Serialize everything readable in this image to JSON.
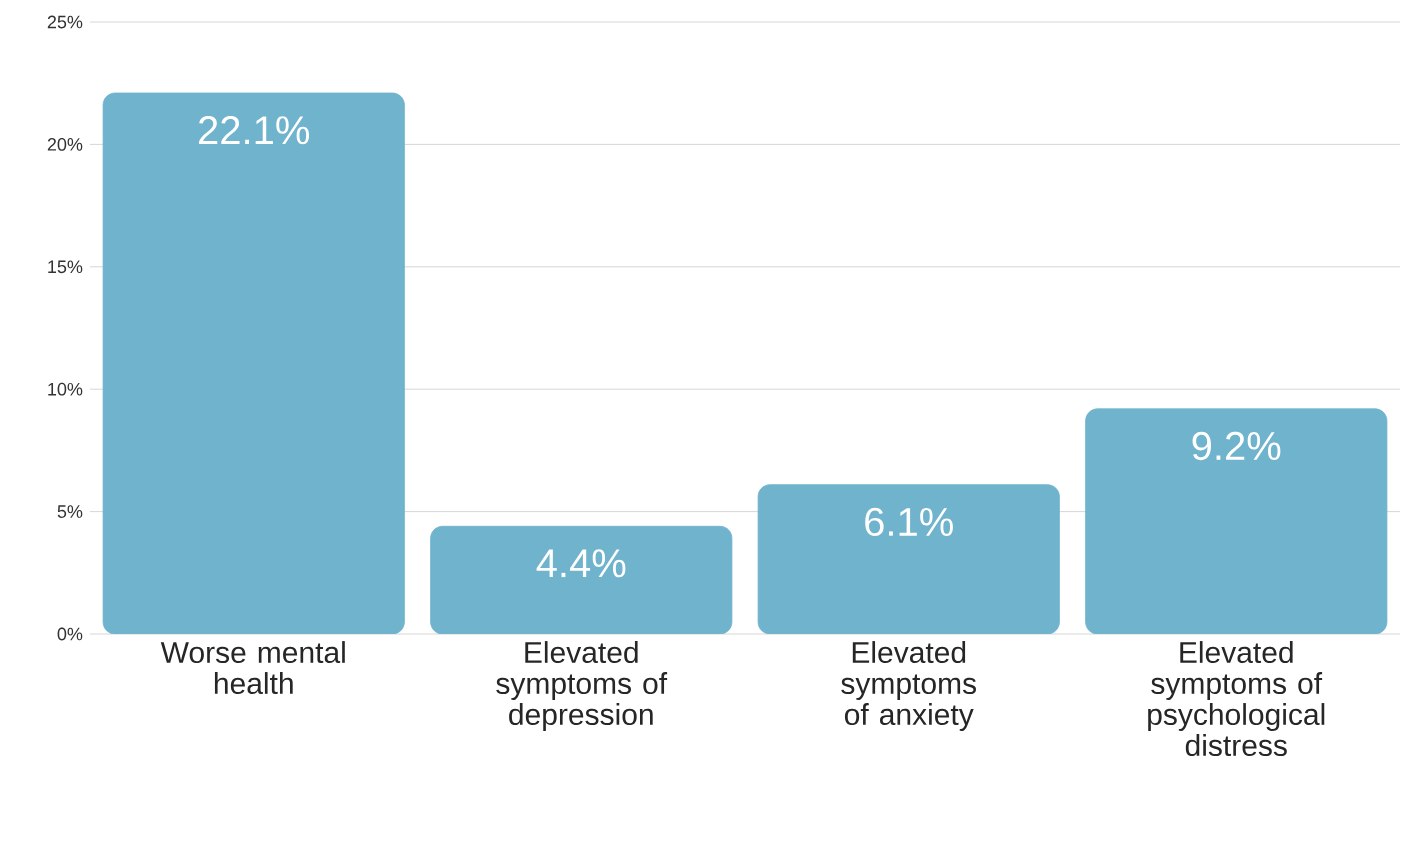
{
  "chart_data": {
    "type": "bar",
    "categories": [
      "Worse mental health",
      "Elevated symptoms of depression",
      "Elevated symptoms of anxiety",
      "Elevated symptoms of psychological distress"
    ],
    "values": [
      22.1,
      4.4,
      6.1,
      9.2
    ],
    "value_labels": [
      "22.1%",
      "4.4%",
      "6.1%",
      "9.2%"
    ],
    "color": "#6fb3cd",
    "ylim": [
      0,
      25
    ],
    "yticks": [
      {
        "value": 0,
        "label": "0%"
      },
      {
        "value": 5,
        "label": "5%"
      },
      {
        "value": 10,
        "label": "10%"
      },
      {
        "value": 15,
        "label": "15%"
      },
      {
        "value": 20,
        "label": "20%"
      },
      {
        "value": 25,
        "label": "25%"
      }
    ],
    "grid": "y"
  }
}
